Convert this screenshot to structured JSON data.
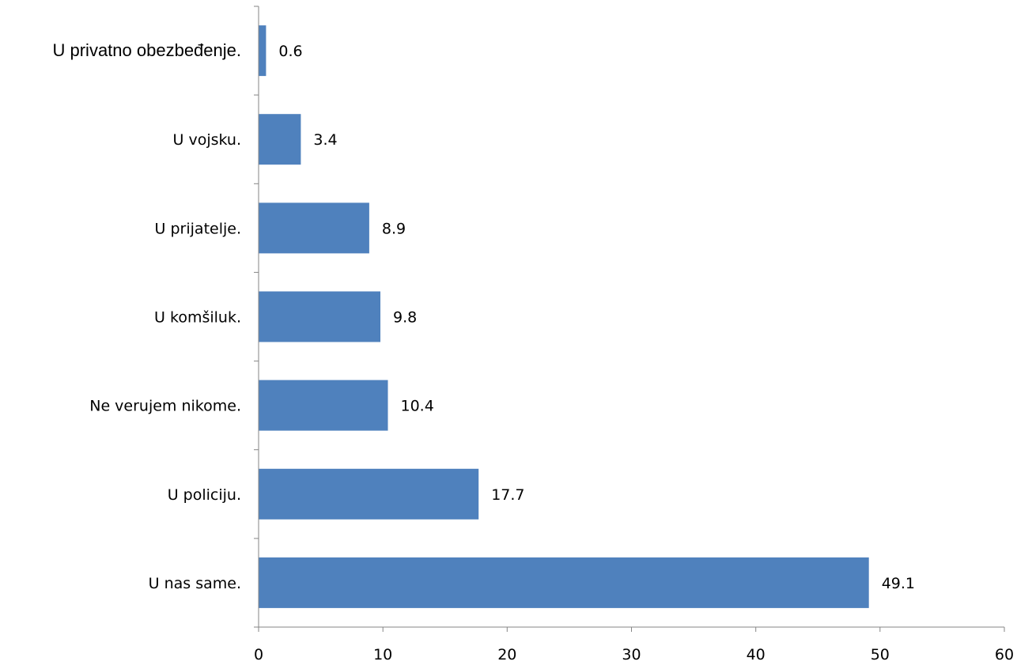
{
  "chart_data": {
    "type": "bar",
    "orientation": "horizontal",
    "categories": [
      "U privatno obezbeđenje.",
      "U vojsku.",
      "U prijatelje.",
      "U komšiluk.",
      "Ne verujem nikome.",
      "U policiju.",
      "U nas same."
    ],
    "values": [
      0.6,
      3.4,
      8.9,
      9.8,
      10.4,
      17.7,
      49.1
    ],
    "value_labels": [
      "0.6",
      "3.4",
      "8.9",
      "9.8",
      "10.4",
      "17.7",
      "49.1"
    ],
    "xlim": [
      0,
      60
    ],
    "x_ticks": [
      "0",
      "10",
      "20",
      "30",
      "40",
      "50",
      "60"
    ],
    "x_tick_values": [
      0,
      10,
      20,
      30,
      40,
      50,
      60
    ],
    "grid": false,
    "legend": "none",
    "bar_color": "#4f81bd",
    "axis_color": "#868686"
  }
}
